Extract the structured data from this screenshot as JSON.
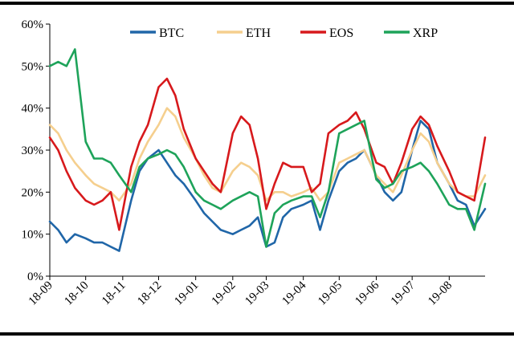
{
  "chart_data": {
    "type": "line",
    "title": "",
    "xlabel": "",
    "ylabel": "",
    "ylim": [
      0,
      60
    ],
    "yticks": [
      "0%",
      "10%",
      "20%",
      "30%",
      "40%",
      "50%",
      "60%"
    ],
    "ytick_values": [
      0,
      10,
      20,
      30,
      40,
      50,
      60
    ],
    "xlim": [
      "2018-09-01",
      "2019-08-31"
    ],
    "xtick_labels": [
      "18-09",
      "18-10",
      "18-11",
      "18-12",
      "19-01",
      "19-02",
      "19-03",
      "19-04",
      "19-05",
      "19-06",
      "19-07",
      "19-08"
    ],
    "xtick_dates": [
      "2018-09-01",
      "2018-10-01",
      "2018-11-01",
      "2018-12-01",
      "2019-01-01",
      "2019-02-01",
      "2019-03-01",
      "2019-04-01",
      "2019-05-01",
      "2019-06-01",
      "2019-07-01",
      "2019-08-01"
    ],
    "grid": false,
    "legend_position": "top",
    "series": [
      {
        "name": "BTC",
        "color": "#2066a8",
        "x": [
          "2018-09-01",
          "2018-09-08",
          "2018-09-15",
          "2018-09-22",
          "2018-10-01",
          "2018-10-08",
          "2018-10-15",
          "2018-10-22",
          "2018-10-29",
          "2018-11-08",
          "2018-11-15",
          "2018-11-22",
          "2018-12-01",
          "2018-12-08",
          "2018-12-15",
          "2018-12-22",
          "2019-01-01",
          "2019-01-08",
          "2019-01-15",
          "2019-01-22",
          "2019-02-01",
          "2019-02-08",
          "2019-02-15",
          "2019-02-22",
          "2019-03-01",
          "2019-03-08",
          "2019-03-15",
          "2019-03-22",
          "2019-04-01",
          "2019-04-08",
          "2019-04-15",
          "2019-04-22",
          "2019-05-01",
          "2019-05-08",
          "2019-05-15",
          "2019-05-22",
          "2019-06-01",
          "2019-06-08",
          "2019-06-15",
          "2019-06-22",
          "2019-07-01",
          "2019-07-08",
          "2019-07-15",
          "2019-07-22",
          "2019-08-01",
          "2019-08-08",
          "2019-08-15",
          "2019-08-22",
          "2019-08-31"
        ],
        "y": [
          13,
          11,
          8,
          10,
          9,
          8,
          8,
          7,
          6,
          18,
          25,
          28,
          30,
          27,
          24,
          22,
          18,
          15,
          13,
          11,
          10,
          11,
          12,
          14,
          7,
          8,
          14,
          16,
          17,
          18,
          11,
          18,
          25,
          27,
          28,
          30,
          24,
          20,
          18,
          20,
          30,
          37,
          35,
          27,
          22,
          18,
          17,
          12,
          16
        ]
      },
      {
        "name": "ETH",
        "color": "#f5cf8e",
        "x": [
          "2018-09-01",
          "2018-09-08",
          "2018-09-15",
          "2018-09-22",
          "2018-10-01",
          "2018-10-08",
          "2018-10-15",
          "2018-10-22",
          "2018-10-29",
          "2018-11-08",
          "2018-11-15",
          "2018-11-22",
          "2018-12-01",
          "2018-12-08",
          "2018-12-15",
          "2018-12-22",
          "2019-01-01",
          "2019-01-08",
          "2019-01-15",
          "2019-01-22",
          "2019-02-01",
          "2019-02-08",
          "2019-02-15",
          "2019-02-22",
          "2019-03-01",
          "2019-03-08",
          "2019-03-15",
          "2019-03-22",
          "2019-04-01",
          "2019-04-08",
          "2019-04-15",
          "2019-04-22",
          "2019-05-01",
          "2019-05-08",
          "2019-05-15",
          "2019-05-22",
          "2019-06-01",
          "2019-06-08",
          "2019-06-15",
          "2019-06-22",
          "2019-07-01",
          "2019-07-08",
          "2019-07-15",
          "2019-07-22",
          "2019-08-01",
          "2019-08-08",
          "2019-08-15",
          "2019-08-22",
          "2019-08-31"
        ],
        "y": [
          36,
          34,
          30,
          27,
          24,
          22,
          21,
          20,
          18,
          22,
          28,
          32,
          36,
          40,
          38,
          33,
          28,
          24,
          21,
          20,
          25,
          27,
          26,
          24,
          18,
          20,
          20,
          19,
          20,
          21,
          18,
          20,
          27,
          28,
          29,
          30,
          24,
          22,
          20,
          24,
          30,
          34,
          32,
          27,
          22,
          20,
          19,
          19,
          24
        ]
      },
      {
        "name": "EOS",
        "color": "#d7191c",
        "x": [
          "2018-09-01",
          "2018-09-08",
          "2018-09-15",
          "2018-09-22",
          "2018-10-01",
          "2018-10-08",
          "2018-10-15",
          "2018-10-22",
          "2018-10-29",
          "2018-11-08",
          "2018-11-15",
          "2018-11-22",
          "2018-12-01",
          "2018-12-08",
          "2018-12-15",
          "2018-12-22",
          "2019-01-01",
          "2019-01-08",
          "2019-01-15",
          "2019-01-22",
          "2019-02-01",
          "2019-02-08",
          "2019-02-15",
          "2019-02-22",
          "2019-03-01",
          "2019-03-08",
          "2019-03-15",
          "2019-03-22",
          "2019-04-01",
          "2019-04-08",
          "2019-04-15",
          "2019-04-22",
          "2019-05-01",
          "2019-05-08",
          "2019-05-15",
          "2019-05-22",
          "2019-06-01",
          "2019-06-08",
          "2019-06-15",
          "2019-06-22",
          "2019-07-01",
          "2019-07-08",
          "2019-07-15",
          "2019-07-22",
          "2019-08-01",
          "2019-08-08",
          "2019-08-15",
          "2019-08-22",
          "2019-08-31"
        ],
        "y": [
          33,
          30,
          25,
          21,
          18,
          17,
          18,
          20,
          11,
          26,
          32,
          36,
          45,
          47,
          43,
          35,
          28,
          25,
          22,
          20,
          34,
          38,
          36,
          28,
          16,
          22,
          27,
          26,
          26,
          20,
          22,
          34,
          36,
          37,
          39,
          35,
          27,
          26,
          22,
          27,
          35,
          38,
          36,
          31,
          25,
          20,
          19,
          18,
          33
        ]
      },
      {
        "name": "XRP",
        "color": "#1ea35a",
        "x": [
          "2018-09-01",
          "2018-09-08",
          "2018-09-15",
          "2018-09-22",
          "2018-10-01",
          "2018-10-08",
          "2018-10-15",
          "2018-10-22",
          "2018-10-29",
          "2018-11-08",
          "2018-11-15",
          "2018-11-22",
          "2018-12-01",
          "2018-12-08",
          "2018-12-15",
          "2018-12-22",
          "2019-01-01",
          "2019-01-08",
          "2019-01-15",
          "2019-01-22",
          "2019-02-01",
          "2019-02-08",
          "2019-02-15",
          "2019-02-22",
          "2019-03-01",
          "2019-03-08",
          "2019-03-15",
          "2019-03-22",
          "2019-04-01",
          "2019-04-08",
          "2019-04-15",
          "2019-04-22",
          "2019-05-01",
          "2019-05-08",
          "2019-05-15",
          "2019-05-22",
          "2019-06-01",
          "2019-06-08",
          "2019-06-15",
          "2019-06-22",
          "2019-07-01",
          "2019-07-08",
          "2019-07-15",
          "2019-07-22",
          "2019-08-01",
          "2019-08-08",
          "2019-08-15",
          "2019-08-22",
          "2019-08-31"
        ],
        "y": [
          50,
          51,
          50,
          54,
          32,
          28,
          28,
          27,
          24,
          20,
          26,
          28,
          29,
          30,
          29,
          26,
          20,
          18,
          17,
          16,
          18,
          19,
          20,
          19,
          7,
          15,
          17,
          18,
          19,
          19,
          14,
          20,
          34,
          35,
          36,
          37,
          23,
          21,
          22,
          25,
          26,
          27,
          25,
          22,
          17,
          16,
          16,
          11,
          22
        ]
      }
    ]
  }
}
